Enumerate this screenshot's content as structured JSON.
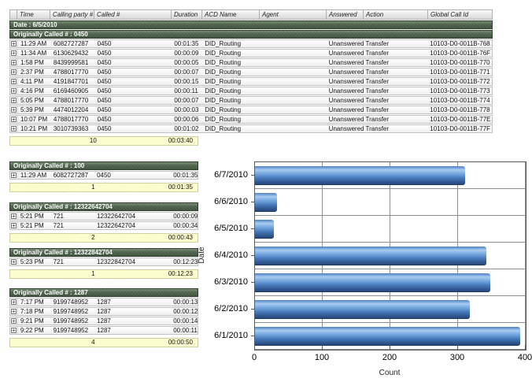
{
  "report": {
    "columns": [
      "",
      "Time",
      "Calling party #",
      "Called #",
      "Duration",
      "ACD Name",
      "Agent",
      "Answered",
      "Action",
      "Global Call Id"
    ],
    "date_header": "Date : 6/5/2010",
    "sections": [
      {
        "title": "Originally Called # : 0450",
        "full_width": true,
        "rows": [
          {
            "time": "11:29 AM",
            "calling_party": "6082727287",
            "called": "0450",
            "duration": "00:01:35",
            "acd_name": "DID_Routing",
            "agent": "",
            "answered": "Unanswered",
            "action": "Transfer",
            "global_call_id": "10103-D0-0011B-768"
          },
          {
            "time": "11:34 AM",
            "calling_party": "6130629432",
            "called": "0450",
            "duration": "00:00:09",
            "acd_name": "DID_Routing",
            "agent": "",
            "answered": "Unanswered",
            "action": "Transfer",
            "global_call_id": "10103-D0-0011B-76F"
          },
          {
            "time": "1:58 PM",
            "calling_party": "8439999581",
            "called": "0450",
            "duration": "00:00:05",
            "acd_name": "DID_Routing",
            "agent": "",
            "answered": "Unanswered",
            "action": "Transfer",
            "global_call_id": "10103-D0-0011B-770"
          },
          {
            "time": "2:37 PM",
            "calling_party": "4788017770",
            "called": "0450",
            "duration": "00:00:07",
            "acd_name": "DID_Routing",
            "agent": "",
            "answered": "Unanswered",
            "action": "Transfer",
            "global_call_id": "10103-D0-0011B-771"
          },
          {
            "time": "4:11 PM",
            "calling_party": "4191847701",
            "called": "0450",
            "duration": "00:00:15",
            "acd_name": "DID_Routing",
            "agent": "",
            "answered": "Unanswered",
            "action": "Transfer",
            "global_call_id": "10103-D0-0011B-772"
          },
          {
            "time": "4:16 PM",
            "calling_party": "6169460905",
            "called": "0450",
            "duration": "00:00:11",
            "acd_name": "DID_Routing",
            "agent": "",
            "answered": "Unanswered",
            "action": "Transfer",
            "global_call_id": "10103-D0-0011B-773"
          },
          {
            "time": "5:05 PM",
            "calling_party": "4788017770",
            "called": "0450",
            "duration": "00:00:07",
            "acd_name": "DID_Routing",
            "agent": "",
            "answered": "Unanswered",
            "action": "Transfer",
            "global_call_id": "10103-D0-0011B-774"
          },
          {
            "time": "5:39 PM",
            "calling_party": "4474012204",
            "called": "0450",
            "duration": "00:00:03",
            "acd_name": "DID_Routing",
            "agent": "",
            "answered": "Unanswered",
            "action": "Transfer",
            "global_call_id": "10103-D0-0011B-778"
          },
          {
            "time": "10:07 PM",
            "calling_party": "4788017770",
            "called": "0450",
            "duration": "00:00:06",
            "acd_name": "DID_Routing",
            "agent": "",
            "answered": "Unanswered",
            "action": "Transfer",
            "global_call_id": "10103-D0-0011B-77E"
          },
          {
            "time": "10:21 PM",
            "calling_party": "3010739363",
            "called": "0450",
            "duration": "00:01:02",
            "acd_name": "DID_Routing",
            "agent": "",
            "answered": "Unanswered",
            "action": "Transfer",
            "global_call_id": "10103-D0-0011B-77F"
          }
        ],
        "summary": {
          "count": "10",
          "total_duration": "00:03:40"
        }
      },
      {
        "title": "Originally Called # : 100",
        "full_width": false,
        "rows": [
          {
            "time": "11:29 AM",
            "calling_party": "6082727287",
            "called": "0450",
            "duration": "00:01:35"
          }
        ],
        "summary": {
          "count": "1",
          "total_duration": "00:01:35"
        }
      },
      {
        "title": "Originally Called # : 12322642704",
        "full_width": false,
        "rows": [
          {
            "time": "5:21 PM",
            "calling_party": "721",
            "called": "12322642704",
            "duration": "00:00:09"
          },
          {
            "time": "5:21 PM",
            "calling_party": "721",
            "called": "12322642704",
            "duration": "00:00:34"
          }
        ],
        "summary": {
          "count": "2",
          "total_duration": "00:00:43"
        }
      },
      {
        "title": "Originally Called # : 12322842704",
        "full_width": false,
        "rows": [
          {
            "time": "5:23 PM",
            "calling_party": "721",
            "called": "12322842704",
            "duration": "00:12:23"
          }
        ],
        "summary": {
          "count": "1",
          "total_duration": "00:12:23"
        }
      },
      {
        "title": "Originally Called # : 1287",
        "full_width": false,
        "rows": [
          {
            "time": "7:17 PM",
            "calling_party": "9199748952",
            "called": "1287",
            "duration": "00:00:13"
          },
          {
            "time": "7:18 PM",
            "calling_party": "9199748952",
            "called": "1287",
            "duration": "00:00:12"
          },
          {
            "time": "9:21 PM",
            "calling_party": "9199748952",
            "called": "1287",
            "duration": "00:00:14"
          },
          {
            "time": "9:22 PM",
            "calling_party": "9199748952",
            "called": "1287",
            "duration": "00:00:11"
          }
        ],
        "summary": {
          "count": "4",
          "total_duration": "00:00:50"
        }
      }
    ],
    "expand_icon_glyph": "+"
  },
  "chart_data": {
    "type": "bar",
    "orientation": "horizontal",
    "categories": [
      "6/7/2010",
      "6/6/2010",
      "6/5/2010",
      "6/4/2010",
      "6/3/2010",
      "6/2/2010",
      "6/1/2010"
    ],
    "values": [
      310,
      33,
      28,
      342,
      348,
      318,
      392
    ],
    "title": "",
    "xlabel": "Count",
    "ylabel": "Date",
    "xlim": [
      0,
      400
    ],
    "xticks": [
      0,
      100,
      200,
      300,
      400
    ],
    "grid": true,
    "legend": false
  },
  "colors": {
    "group_header_green": "#4c614c",
    "group_header_green_light": "#74886f",
    "group_header_green_dark": "#3d513b",
    "summary_row_yellow": "#ffffd2",
    "bar_blue": "#5b8fd6"
  }
}
